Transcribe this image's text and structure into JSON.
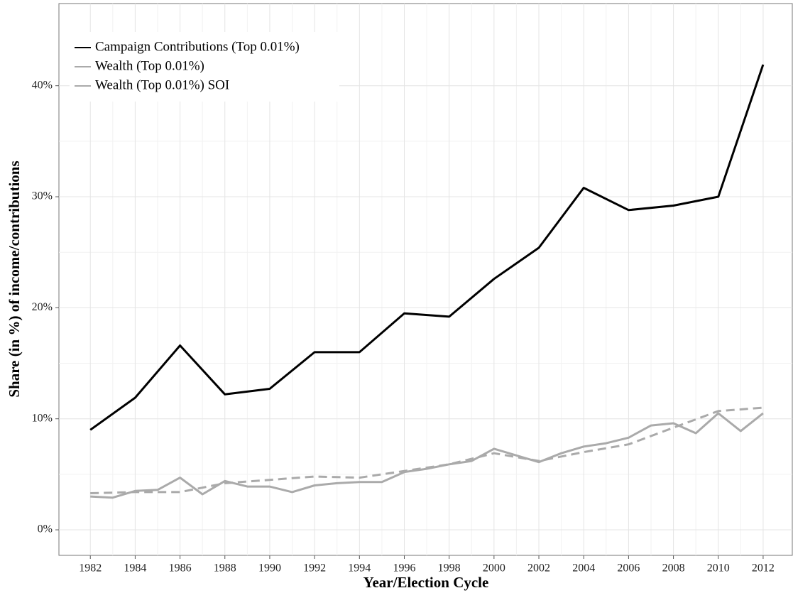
{
  "chart_data": {
    "type": "line",
    "xlabel": "Year/Election Cycle",
    "ylabel": "Share (in %) of income/contributions",
    "xlim": [
      1980.6,
      2013.3
    ],
    "ylim": [
      -2.3,
      47.4
    ],
    "xticks": [
      1982,
      1984,
      1986,
      1988,
      1990,
      1992,
      1994,
      1996,
      1998,
      2000,
      2002,
      2004,
      2006,
      2008,
      2010,
      2012
    ],
    "yticks": [
      {
        "value": 0,
        "label": "0%"
      },
      {
        "value": 10,
        "label": "10%"
      },
      {
        "value": 20,
        "label": "20%"
      },
      {
        "value": 30,
        "label": "30%"
      },
      {
        "value": 40,
        "label": "40%"
      }
    ],
    "grid": true,
    "legend": "top-left",
    "series": [
      {
        "name": "Campaign Contributions (Top 0.01%)",
        "color": "#000000",
        "x": [
          1982,
          1984,
          1986,
          1988,
          1990,
          1992,
          1994,
          1996,
          1998,
          2000,
          2002,
          2004,
          2006,
          2008,
          2010,
          2012
        ],
        "values": [
          9.0,
          11.9,
          16.6,
          12.2,
          12.7,
          16.0,
          16.0,
          19.5,
          19.2,
          22.6,
          25.4,
          30.8,
          28.8,
          29.2,
          30.0,
          41.9
        ]
      },
      {
        "name": "Wealth (Top 0.01%)",
        "color": "#aaaaaa",
        "x": [
          1982,
          1983,
          1984,
          1985,
          1986,
          1987,
          1988,
          1989,
          1990,
          1991,
          1992,
          1993,
          1994,
          1995,
          1996,
          1997,
          1998,
          1999,
          2000,
          2001,
          2002,
          2003,
          2004,
          2005,
          2006,
          2007,
          2008,
          2009,
          2010,
          2011,
          2012
        ],
        "values": [
          3.0,
          2.9,
          3.5,
          3.6,
          4.7,
          3.2,
          4.4,
          3.9,
          3.9,
          3.4,
          4.0,
          4.2,
          4.3,
          4.3,
          5.2,
          5.5,
          5.9,
          6.2,
          7.3,
          6.7,
          6.1,
          6.9,
          7.5,
          7.8,
          8.3,
          9.4,
          9.6,
          8.7,
          10.5,
          8.9,
          10.5
        ]
      },
      {
        "name": "Wealth (Top 0.01%) SOI",
        "color": "#aaaaaa",
        "dashed": true,
        "x": [
          1982,
          1984,
          1986,
          1988,
          1990,
          1992,
          1994,
          1996,
          1998,
          2000,
          2002,
          2004,
          2006,
          2008,
          2010,
          2012
        ],
        "values": [
          3.3,
          3.4,
          3.4,
          4.2,
          4.5,
          4.8,
          4.7,
          5.3,
          5.9,
          6.9,
          6.2,
          7.0,
          7.7,
          9.2,
          10.7,
          11.0
        ]
      }
    ]
  }
}
